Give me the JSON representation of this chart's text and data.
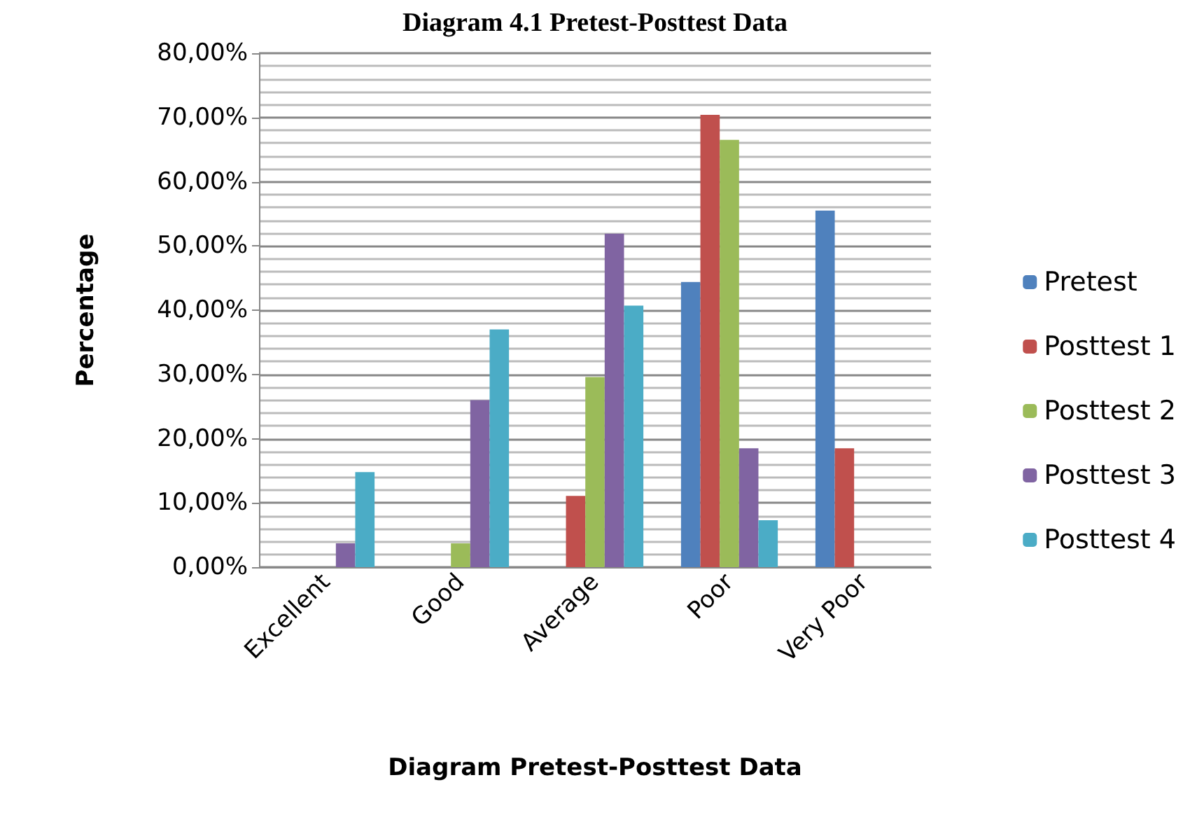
{
  "chart_data": {
    "type": "bar",
    "title": "Diagram 4.1 Pretest-Posttest Data",
    "xlabel": "Diagram Pretest-Posttest Data",
    "ylabel": "Percentage",
    "categories": [
      "Excellent",
      "Good",
      "Average",
      "Poor",
      "Very Poor"
    ],
    "series": [
      {
        "name": "Pretest",
        "color": "#4f81bd",
        "values": [
          0,
          0,
          0,
          44.4,
          55.5
        ]
      },
      {
        "name": "Posttest 1",
        "color": "#c0504d",
        "values": [
          0,
          0,
          11.1,
          70.4,
          18.5
        ]
      },
      {
        "name": "Posttest 2",
        "color": "#9bbb59",
        "values": [
          0,
          3.7,
          29.6,
          66.5,
          0
        ]
      },
      {
        "name": "Posttest 3",
        "color": "#8064a2",
        "values": [
          3.7,
          26,
          51.9,
          18.5,
          0
        ]
      },
      {
        "name": "Posttest 4",
        "color": "#4bacc6",
        "values": [
          14.8,
          37,
          40.7,
          7.3,
          0
        ]
      }
    ],
    "ylim": [
      0,
      80
    ],
    "yticks": [
      {
        "value": 0,
        "label": "0,00%"
      },
      {
        "value": 10,
        "label": "10,00%"
      },
      {
        "value": 20,
        "label": "20,00%"
      },
      {
        "value": 30,
        "label": "30,00%"
      },
      {
        "value": 40,
        "label": "40,00%"
      },
      {
        "value": 50,
        "label": "50,00%"
      },
      {
        "value": 60,
        "label": "60,00%"
      },
      {
        "value": 70,
        "label": "70,00%"
      },
      {
        "value": 80,
        "label": "80,00%"
      }
    ],
    "grid": true,
    "legend": "right"
  }
}
